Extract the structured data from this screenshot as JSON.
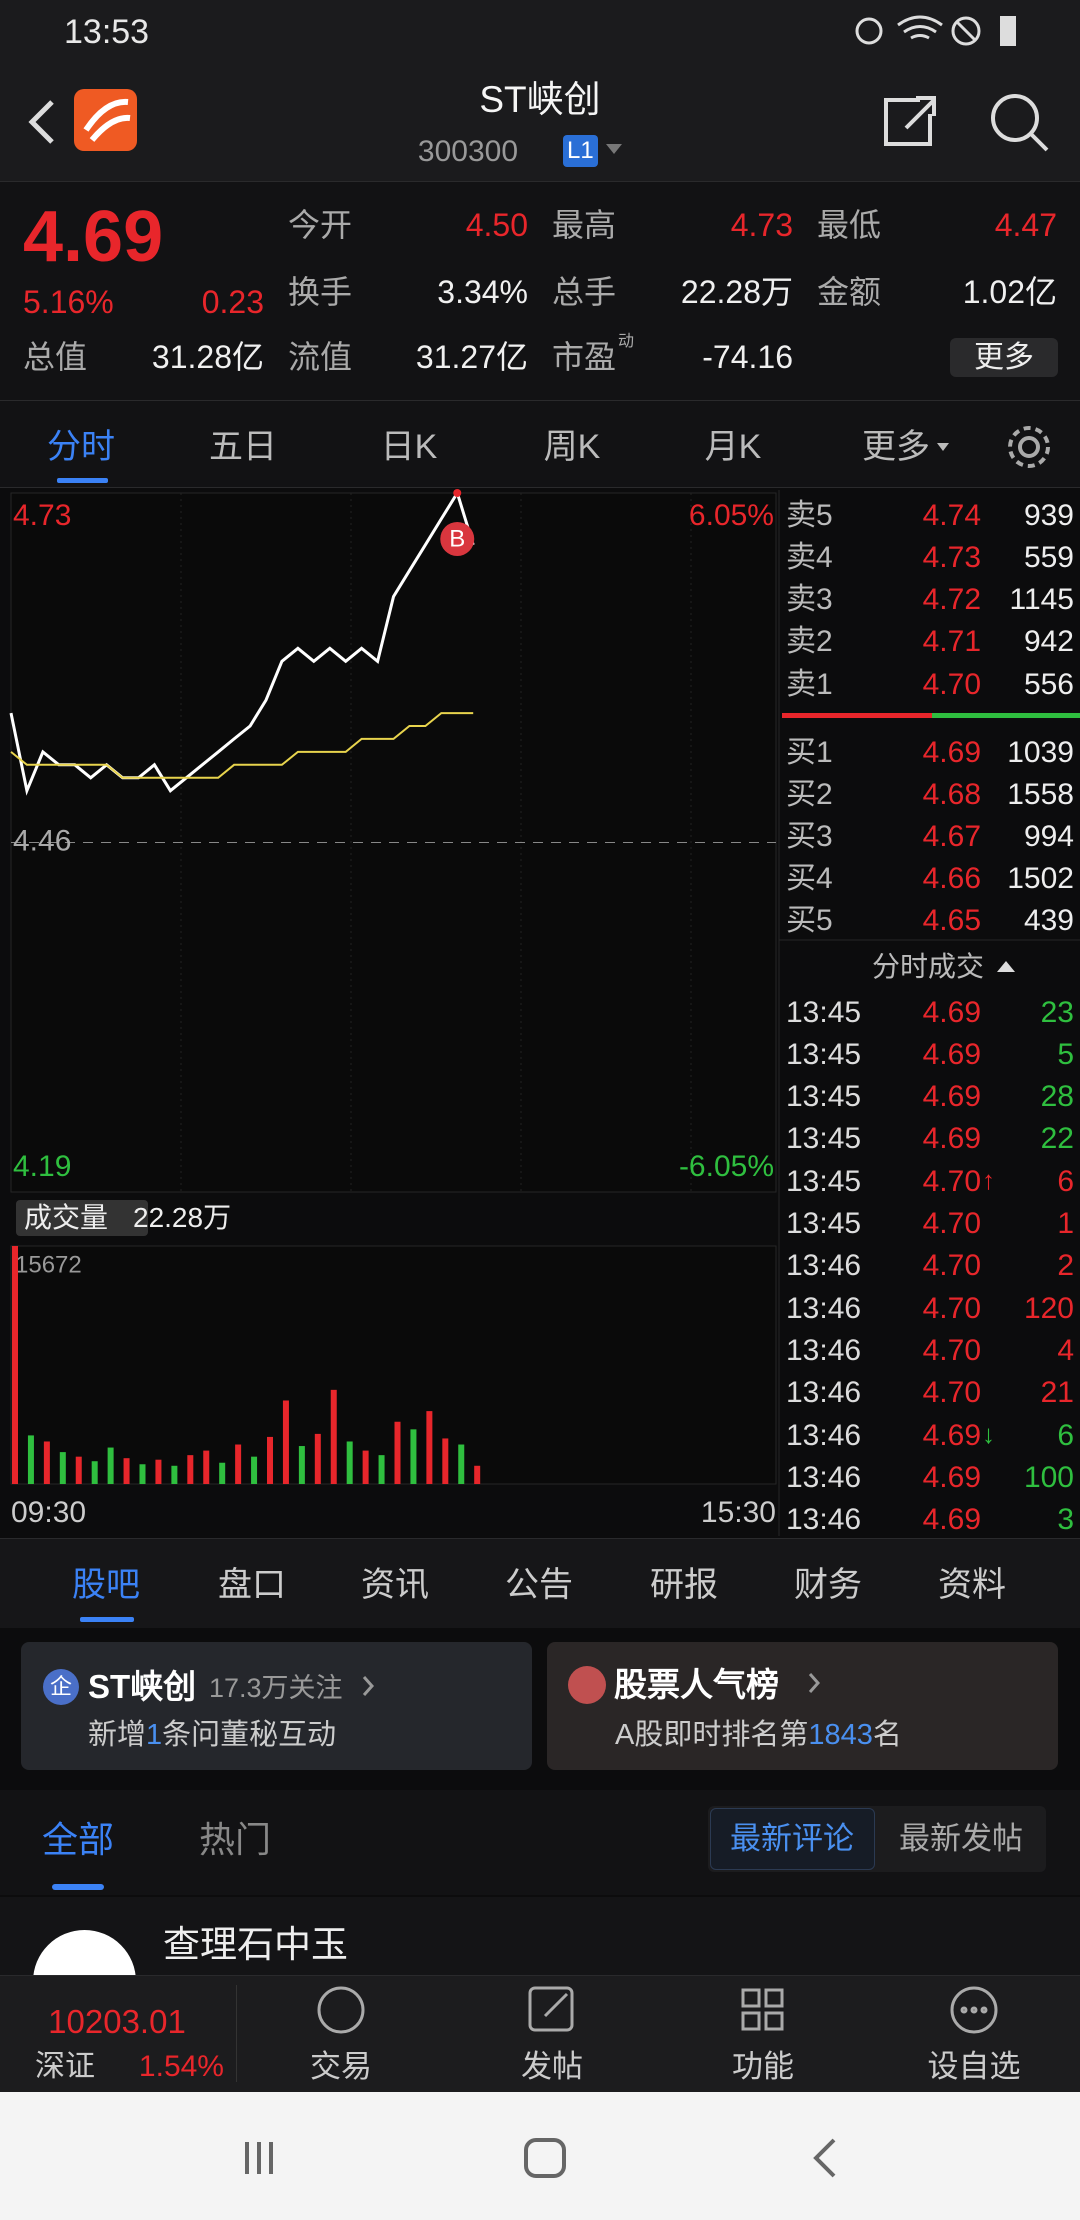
{
  "status": {
    "time": "13:53"
  },
  "header": {
    "title": "ST峡创",
    "code": "300300",
    "badge": "L1"
  },
  "quote": {
    "price": "4.69",
    "change_pct": "5.16%",
    "change": "0.23",
    "more": "更多",
    "stats": [
      {
        "label": "今开",
        "value": "4.50",
        "color": "#e8262b"
      },
      {
        "label": "最高",
        "value": "4.73",
        "color": "#e8262b"
      },
      {
        "label": "最低",
        "value": "4.47",
        "color": "#e8262b"
      },
      {
        "label": "换手",
        "value": "3.34%",
        "color": "#f0f0f0"
      },
      {
        "label": "总手",
        "value": "22.28万",
        "color": "#f0f0f0"
      },
      {
        "label": "金额",
        "value": "1.02亿",
        "color": "#f0f0f0"
      },
      {
        "label": "总值",
        "value": "31.28亿",
        "color": "#f0f0f0"
      },
      {
        "label": "流值",
        "value": "31.27亿",
        "color": "#f0f0f0"
      },
      {
        "label": "市盈",
        "sup": "动",
        "value": "-74.16",
        "color": "#f0f0f0"
      }
    ]
  },
  "period_tabs": [
    "分时",
    "五日",
    "日K",
    "周K",
    "月K",
    "更多"
  ],
  "chart_data": [
    {
      "type": "line",
      "ylim": [
        4.19,
        4.73
      ],
      "yticks": [
        4.73,
        4.46,
        4.19
      ],
      "y2lim": [
        -6.05,
        6.05
      ],
      "y2ticks": [
        {
          "value": 6.05,
          "label": "6.05%"
        },
        {
          "value": -6.05,
          "label": "-6.05%"
        }
      ],
      "annotation": "B",
      "series": [
        {
          "color": "#ffffff",
          "values": [
            4.56,
            4.5,
            4.53,
            4.52,
            4.52,
            4.51,
            4.52,
            4.51,
            4.51,
            4.52,
            4.5,
            4.51,
            4.52,
            4.53,
            4.54,
            4.55,
            4.57,
            4.6,
            4.61,
            4.6,
            4.61,
            4.6,
            4.61,
            4.6,
            4.65,
            4.67,
            4.69,
            4.71,
            4.73,
            4.69
          ]
        },
        {
          "color": "#e8d44d",
          "values": [
            4.53,
            4.52,
            4.52,
            4.52,
            4.52,
            4.52,
            4.52,
            4.51,
            4.51,
            4.51,
            4.51,
            4.51,
            4.51,
            4.51,
            4.52,
            4.52,
            4.52,
            4.52,
            4.53,
            4.53,
            4.53,
            4.53,
            4.54,
            4.54,
            4.54,
            4.55,
            4.55,
            4.56,
            4.56,
            4.56
          ]
        }
      ]
    },
    {
      "type": "bar",
      "label": "成交量",
      "total": "22.28万",
      "ylim": [
        0,
        15672
      ],
      "yticks": [
        15672
      ],
      "x_labels": [
        "09:30",
        "15:30"
      ],
      "values": [
        15672,
        3200,
        2800,
        2100,
        1800,
        1500,
        2400,
        1700,
        1300,
        1600,
        1200,
        1900,
        2200,
        1400,
        2600,
        1800,
        3100,
        5500,
        2500,
        3300,
        6200,
        2800,
        2200,
        1900,
        4100,
        3600,
        4800,
        3000,
        2600,
        1200
      ],
      "colors": [
        "#e8262b",
        "#2fbf3f",
        "#e8262b",
        "#2fbf3f",
        "#e8262b",
        "#2fbf3f",
        "#2fbf3f",
        "#e8262b",
        "#2fbf3f",
        "#e8262b",
        "#2fbf3f",
        "#e8262b",
        "#e8262b",
        "#2fbf3f",
        "#e8262b",
        "#2fbf3f",
        "#e8262b",
        "#e8262b",
        "#2fbf3f",
        "#e8262b",
        "#e8262b",
        "#2fbf3f",
        "#e8262b",
        "#2fbf3f",
        "#e8262b",
        "#2fbf3f",
        "#e8262b",
        "#e8262b",
        "#2fbf3f",
        "#e8262b"
      ]
    }
  ],
  "order_book": {
    "sell": [
      {
        "label": "卖5",
        "price": "4.74",
        "volume": "939"
      },
      {
        "label": "卖4",
        "price": "4.73",
        "volume": "559"
      },
      {
        "label": "卖3",
        "price": "4.72",
        "volume": "1145"
      },
      {
        "label": "卖2",
        "price": "4.71",
        "volume": "942"
      },
      {
        "label": "卖1",
        "price": "4.70",
        "volume": "556"
      }
    ],
    "buy": [
      {
        "label": "买1",
        "price": "4.69",
        "volume": "1039"
      },
      {
        "label": "买2",
        "price": "4.68",
        "volume": "1558"
      },
      {
        "label": "买3",
        "price": "4.67",
        "volume": "994"
      },
      {
        "label": "买4",
        "price": "4.66",
        "volume": "1502"
      },
      {
        "label": "买5",
        "price": "4.65",
        "volume": "439"
      }
    ]
  },
  "trades": {
    "title": "分时成交",
    "rows": [
      {
        "time": "13:45",
        "price": "4.69",
        "volume": "23",
        "volume_color": "#2fbf3f"
      },
      {
        "time": "13:45",
        "price": "4.69",
        "volume": "5",
        "volume_color": "#2fbf3f"
      },
      {
        "time": "13:45",
        "price": "4.69",
        "volume": "28",
        "volume_color": "#2fbf3f"
      },
      {
        "time": "13:45",
        "price": "4.69",
        "volume": "22",
        "volume_color": "#2fbf3f"
      },
      {
        "time": "13:45",
        "price": "4.70",
        "arrow": "↑",
        "arrow_color": "#e8262b",
        "volume": "6",
        "volume_color": "#e8262b"
      },
      {
        "time": "13:45",
        "price": "4.70",
        "volume": "1",
        "volume_color": "#e8262b"
      },
      {
        "time": "13:46",
        "price": "4.70",
        "volume": "2",
        "volume_color": "#e8262b"
      },
      {
        "time": "13:46",
        "price": "4.70",
        "volume": "120",
        "volume_color": "#e8262b"
      },
      {
        "time": "13:46",
        "price": "4.70",
        "volume": "4",
        "volume_color": "#e8262b"
      },
      {
        "time": "13:46",
        "price": "4.70",
        "volume": "21",
        "volume_color": "#e8262b"
      },
      {
        "time": "13:46",
        "price": "4.69",
        "arrow": "↓",
        "arrow_color": "#2fbf3f",
        "volume": "6",
        "volume_color": "#2fbf3f"
      },
      {
        "time": "13:46",
        "price": "4.69",
        "volume": "100",
        "volume_color": "#2fbf3f"
      },
      {
        "time": "13:46",
        "price": "4.69",
        "volume": "3",
        "volume_color": "#2fbf3f"
      }
    ]
  },
  "section_tabs": [
    "股吧",
    "盘口",
    "资讯",
    "公告",
    "研报",
    "财务",
    "资料"
  ],
  "cards": [
    {
      "icon": "企",
      "title": "ST峡创",
      "sub": "17.3万关注",
      "text": [
        "新增",
        "1",
        "条问董秘互动"
      ]
    },
    {
      "title": "股票人气榜",
      "text": [
        "A股即时排名第",
        "1843",
        "名"
      ]
    }
  ],
  "filter": {
    "tabs": [
      "全部",
      "热门"
    ],
    "sort": [
      "最新评论",
      "最新发帖"
    ]
  },
  "post": {
    "author": "查理石中玉"
  },
  "bottom_bar": {
    "index_value": "10203.01",
    "index_name": "深证",
    "index_pct": "1.54%",
    "buttons": [
      "交易",
      "发帖",
      "功能",
      "设自选"
    ]
  }
}
